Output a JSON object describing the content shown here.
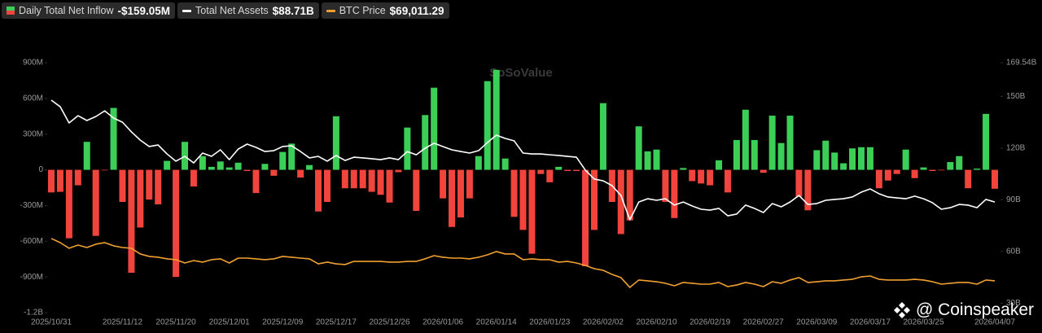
{
  "chart_data": {
    "type": "bar",
    "watermark": "SoSoValue",
    "credit": "@ Coinspeaker",
    "categories": [
      "2025/10/31",
      null,
      null,
      null,
      null,
      null,
      null,
      null,
      "2025/11/12",
      null,
      null,
      null,
      null,
      null,
      "2025/11/20",
      null,
      null,
      null,
      null,
      null,
      "2025/12/01",
      null,
      null,
      null,
      null,
      null,
      "2025/12/09",
      null,
      null,
      null,
      null,
      null,
      "2025/12/17",
      null,
      null,
      null,
      null,
      null,
      "2025/12/26",
      null,
      null,
      null,
      null,
      null,
      "2026/01/06",
      null,
      null,
      null,
      null,
      null,
      "2026/01/14",
      null,
      null,
      null,
      null,
      null,
      "2026/01/23",
      null,
      null,
      null,
      null,
      null,
      "2026/02/02",
      null,
      null,
      null,
      null,
      null,
      "2026/02/10",
      null,
      null,
      null,
      null,
      null,
      "2026/02/19",
      null,
      null,
      null,
      null,
      null,
      "2026/02/27",
      null,
      null,
      null,
      null,
      null,
      "2026/03/09",
      null,
      null,
      null,
      null,
      null,
      "2026/03/17",
      null,
      null,
      null,
      null,
      null,
      "2026/03/25",
      null,
      null,
      null,
      null,
      null,
      null,
      null,
      "2026/04/07"
    ],
    "ylim": [
      -1200,
      900
    ],
    "yticks": [
      {
        "value": 900,
        "label": "900M"
      },
      {
        "value": 600,
        "label": "600M"
      },
      {
        "value": 300,
        "label": "300M"
      },
      0,
      {
        "value": -300,
        "label": "-300M"
      },
      {
        "value": -600,
        "label": "-600M"
      },
      {
        "value": -900,
        "label": "-900M"
      },
      {
        "value": -1200,
        "label": "-1.2B"
      }
    ],
    "y2lim": [
      24.5,
      169.54
    ],
    "y2ticks": [
      {
        "value": 169.54,
        "label": "169.54B"
      },
      {
        "value": 150,
        "label": "150B"
      },
      {
        "value": 120,
        "label": "120B"
      },
      {
        "value": 90,
        "label": "90B"
      },
      {
        "value": 60,
        "label": "60B"
      },
      {
        "value": 30,
        "label": "30B"
      }
    ],
    "y3lim": [
      39000,
      275000
    ],
    "series": [
      {
        "name": "Daily Total Net Inflow",
        "type": "bar",
        "color_up": "#3ccf58",
        "color_down": "#f0443c",
        "latest": "-$159.05M",
        "values": [
          -190,
          -185,
          -575,
          -130,
          235,
          -555,
          -5,
          520,
          -270,
          -865,
          -485,
          -250,
          -290,
          75,
          -900,
          235,
          -140,
          115,
          25,
          70,
          20,
          60,
          -10,
          -195,
          50,
          -50,
          150,
          220,
          -65,
          40,
          -350,
          -270,
          450,
          -155,
          -155,
          -155,
          -185,
          -210,
          -275,
          -20,
          355,
          -345,
          460,
          690,
          -240,
          -480,
          -400,
          -240,
          115,
          745,
          840,
          95,
          -395,
          -505,
          -705,
          -35,
          -105,
          25,
          -10,
          -10,
          -810,
          -505,
          560,
          -270,
          -540,
          -425,
          365,
          155,
          170,
          -270,
          -405,
          15,
          -95,
          -115,
          -130,
          80,
          -190,
          250,
          505,
          250,
          -25,
          455,
          225,
          455,
          -225,
          -340,
          165,
          245,
          145,
          55,
          180,
          190,
          190,
          -155,
          -90,
          -35,
          170,
          -70,
          20,
          -10,
          -5,
          65,
          115,
          -155,
          10,
          470,
          -159.05
        ]
      },
      {
        "name": "Total Net Assets",
        "type": "line",
        "axis": "y2",
        "color": "#ffffff",
        "latest": "$88.71B",
        "values": [
          147.8,
          144,
          134.6,
          138.8,
          136,
          138.3,
          141.6,
          137.4,
          135,
          129.4,
          124.6,
          120.9,
          121.8,
          116.6,
          112.4,
          115.2,
          111.4,
          117.1,
          115.2,
          119,
          113.3,
          119.4,
          122.3,
          120.4,
          118,
          118.5,
          120.9,
          121.3,
          118,
          114.3,
          115.2,
          112.4,
          115.7,
          112.8,
          114.7,
          114.3,
          113.8,
          113.3,
          114.3,
          113.3,
          118,
          116.1,
          119.9,
          122.8,
          120.9,
          119,
          118,
          117.1,
          118.5,
          123.2,
          127.5,
          125.6,
          124.2,
          117.1,
          116.6,
          116.6,
          116.1,
          115.7,
          115.2,
          114.7,
          107.2,
          102,
          101,
          98.2,
          92.5,
          78.4,
          88.7,
          90.6,
          89.7,
          90.6,
          86.9,
          88.7,
          86.4,
          84.5,
          84,
          85,
          80.7,
          81.7,
          86.9,
          85,
          82.6,
          87.8,
          85.9,
          88.7,
          92.5,
          87.3,
          87.8,
          89.7,
          90.2,
          90.6,
          91.6,
          94.4,
          96.3,
          93.5,
          91.6,
          91.1,
          90.6,
          92.1,
          90.6,
          88.3,
          84.5,
          85.4,
          87.3,
          86.9,
          85.4,
          90.2,
          88.71
        ]
      },
      {
        "name": "BTC Price",
        "type": "line",
        "axis": "y3",
        "color": "#f0a030",
        "latest": "$69,011.29",
        "values": [
          109000,
          105100,
          99800,
          102800,
          100500,
          103600,
          105100,
          102100,
          100500,
          99800,
          94400,
          92100,
          91300,
          89800,
          89000,
          85900,
          88200,
          86700,
          89000,
          89800,
          85900,
          90500,
          90500,
          89800,
          89000,
          89800,
          92100,
          91300,
          90500,
          89800,
          85100,
          86700,
          85100,
          84400,
          87400,
          87400,
          87400,
          87400,
          86700,
          86700,
          87400,
          87400,
          89800,
          92800,
          91300,
          90500,
          90500,
          89800,
          91300,
          93600,
          96700,
          94400,
          94400,
          89000,
          89800,
          89000,
          89000,
          86700,
          87400,
          85900,
          83600,
          80500,
          79000,
          75100,
          72100,
          62800,
          69800,
          69000,
          68200,
          66700,
          64400,
          67500,
          66700,
          65900,
          65900,
          67500,
          63600,
          65100,
          67500,
          65900,
          63600,
          68200,
          66700,
          69800,
          72100,
          67500,
          68200,
          69000,
          69000,
          69800,
          70500,
          72800,
          73600,
          70500,
          69800,
          69800,
          69800,
          70500,
          69800,
          68200,
          65900,
          66700,
          67500,
          67500,
          65900,
          69800,
          69011.29
        ]
      }
    ]
  }
}
